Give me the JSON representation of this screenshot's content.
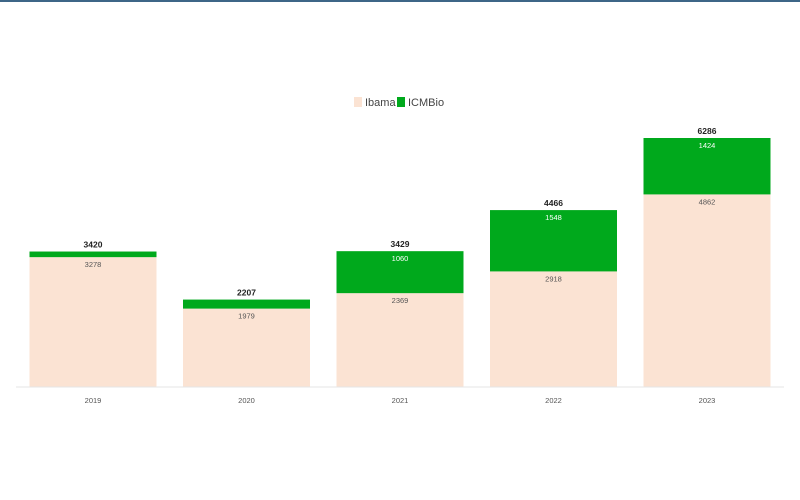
{
  "chart_data": {
    "type": "bar",
    "stacked": true,
    "title": "",
    "xlabel": "",
    "ylabel": "",
    "categories": [
      "2019",
      "2020",
      "2021",
      "2022",
      "2023"
    ],
    "series": [
      {
        "name": "Ibama",
        "values": [
          3278,
          1979,
          2369,
          2918,
          4862
        ],
        "color": "#fbe3d3",
        "label_color": "#555555"
      },
      {
        "name": "ICMBio",
        "values": [
          142,
          228,
          1060,
          1548,
          1424
        ],
        "color": "#00a91c",
        "label_color": "#ffffff",
        "value_labels_shown": [
          false,
          false,
          true,
          true,
          true
        ]
      }
    ],
    "totals": [
      3420,
      2207,
      3429,
      4466,
      6286
    ],
    "value_labels": {
      "Ibama": [
        "3278",
        "1979",
        "2369",
        "2918",
        "4862"
      ],
      "ICMBio": [
        "",
        "",
        "1060",
        "1548",
        "1424"
      ],
      "totals": [
        "3420",
        "2207",
        "3429",
        "4466",
        "6286"
      ]
    },
    "ylim": [
      0,
      6286
    ],
    "grid": false,
    "y_axis_visible": false,
    "legend_position": "top-center"
  }
}
